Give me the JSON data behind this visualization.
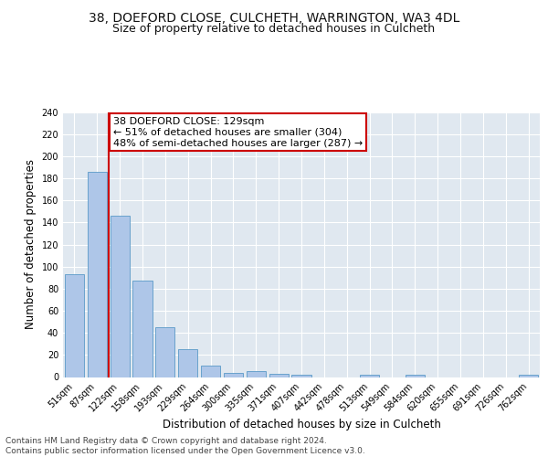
{
  "title_line1": "38, DOEFORD CLOSE, CULCHETH, WARRINGTON, WA3 4DL",
  "title_line2": "Size of property relative to detached houses in Culcheth",
  "xlabel": "Distribution of detached houses by size in Culcheth",
  "ylabel": "Number of detached properties",
  "categories": [
    "51sqm",
    "87sqm",
    "122sqm",
    "158sqm",
    "193sqm",
    "229sqm",
    "264sqm",
    "300sqm",
    "335sqm",
    "371sqm",
    "407sqm",
    "442sqm",
    "478sqm",
    "513sqm",
    "549sqm",
    "584sqm",
    "620sqm",
    "655sqm",
    "691sqm",
    "726sqm",
    "762sqm"
  ],
  "values": [
    93,
    186,
    146,
    87,
    45,
    25,
    10,
    4,
    5,
    3,
    2,
    0,
    0,
    2,
    0,
    2,
    0,
    0,
    0,
    0,
    2
  ],
  "bar_color": "#aec6e8",
  "bar_edge_color": "#5a9ac8",
  "vline_x": 1.5,
  "vline_color": "#cc0000",
  "annotation_text": "38 DOEFORD CLOSE: 129sqm\n← 51% of detached houses are smaller (304)\n48% of semi-detached houses are larger (287) →",
  "annotation_box_color": "#ffffff",
  "annotation_box_edge_color": "#cc0000",
  "ylim": [
    0,
    240
  ],
  "yticks": [
    0,
    20,
    40,
    60,
    80,
    100,
    120,
    140,
    160,
    180,
    200,
    220,
    240
  ],
  "background_color": "#e0e8f0",
  "grid_color": "#ffffff",
  "footer_text": "Contains HM Land Registry data © Crown copyright and database right 2024.\nContains public sector information licensed under the Open Government Licence v3.0.",
  "title_fontsize": 10,
  "subtitle_fontsize": 9,
  "axis_label_fontsize": 8.5,
  "tick_fontsize": 7,
  "annotation_fontsize": 8,
  "footer_fontsize": 6.5
}
